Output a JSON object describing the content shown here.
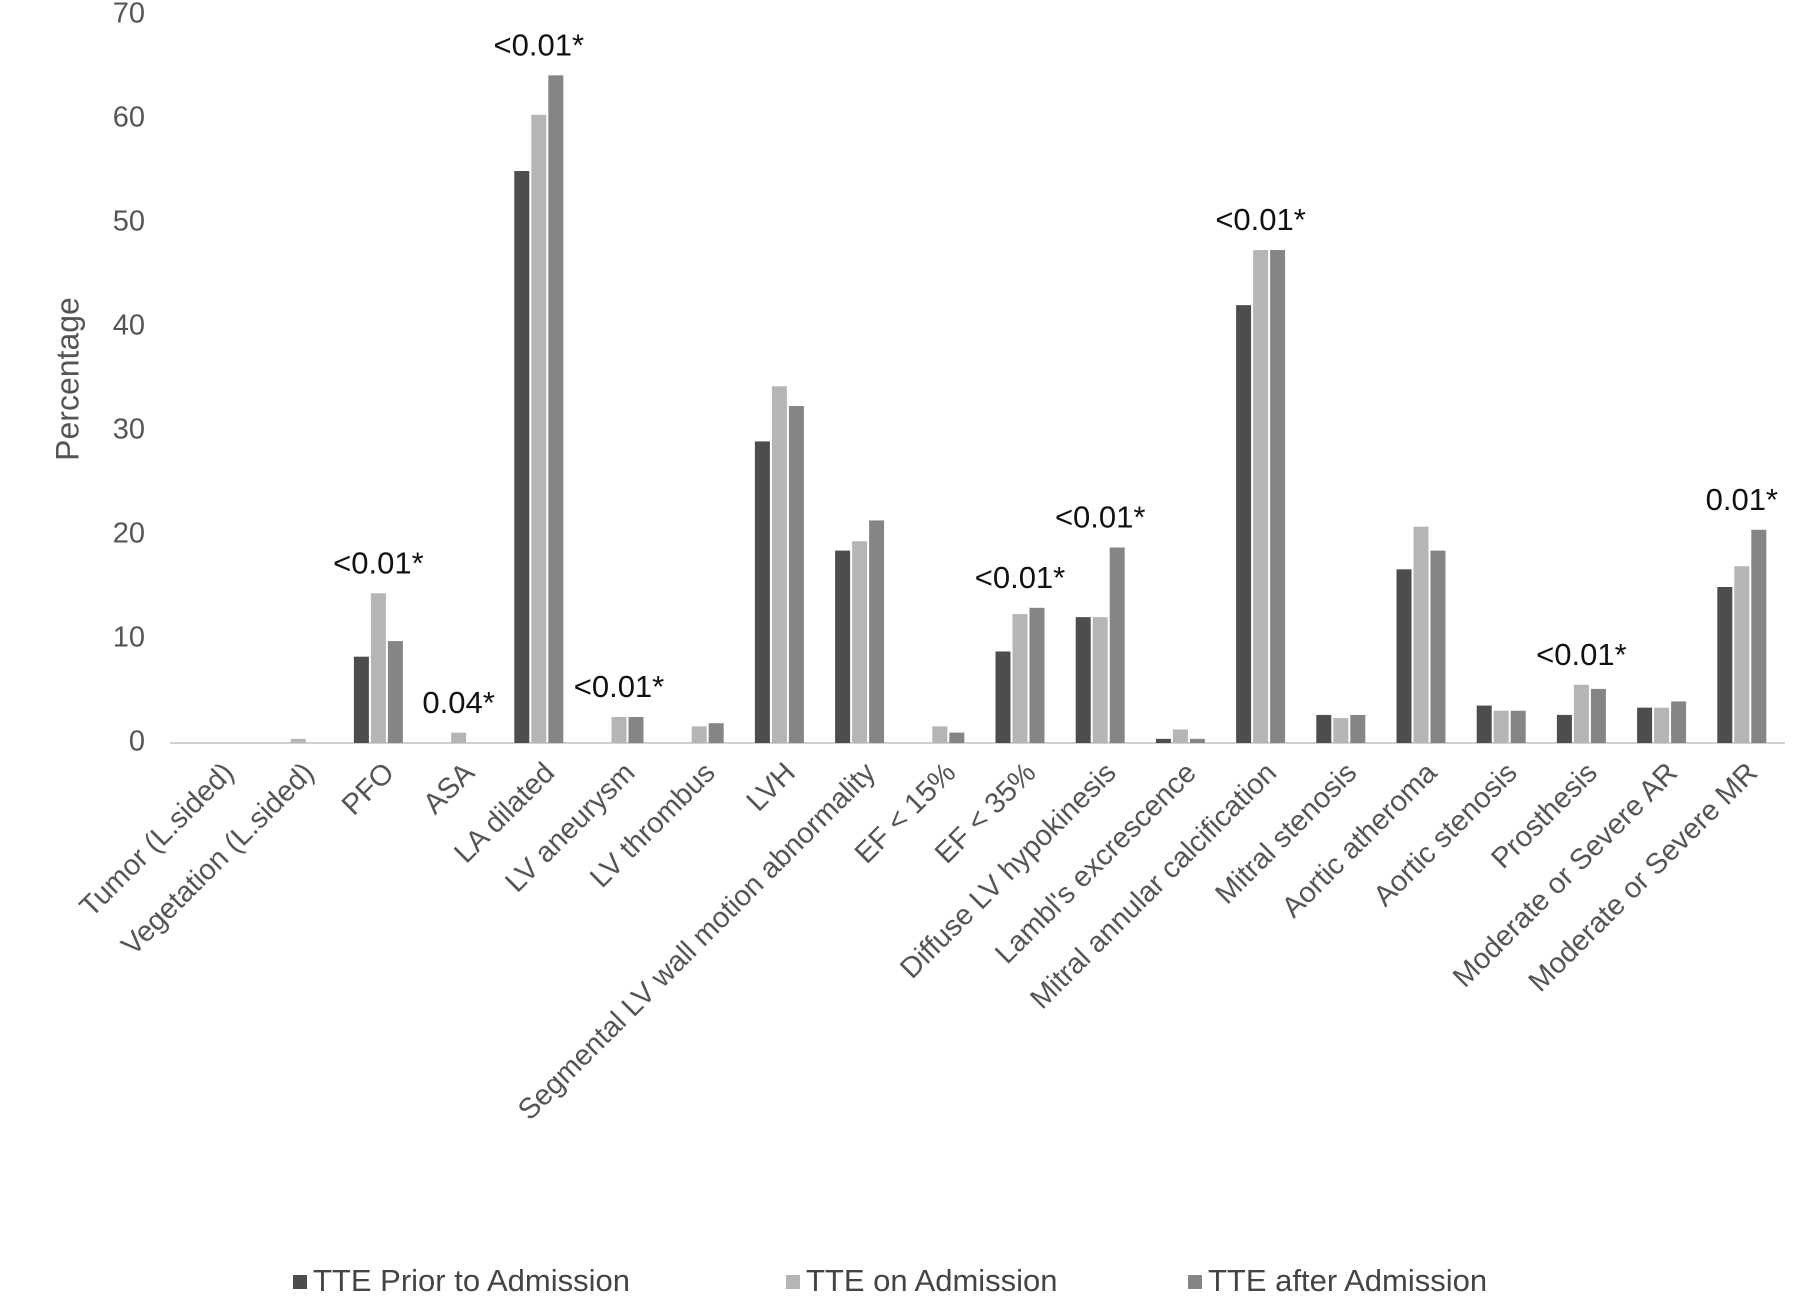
{
  "chart_data": {
    "type": "bar",
    "y_label": "Percentage",
    "categories": [
      "Tumor (L.sided)",
      "Vegetation (L.sided)",
      "PFO",
      "ASA",
      "LA dilated",
      "LV aneurysm",
      "LV thrombus",
      "LVH",
      "Segmental LV wall motion abnormality",
      "EF < 15%",
      "EF < 35%",
      "Diffuse LV hypokinesis",
      "Lambl's excrescence",
      "Mitral annular calcification",
      "Mitral stenosis",
      "Aortic atheroma",
      "Aortic stenosis",
      "Prosthesis",
      "Moderate or Severe AR",
      "Moderate or Severe MR"
    ],
    "series": [
      {
        "name": "TTE Prior to Admission",
        "color": "#4d4d4d",
        "values": [
          0,
          0,
          8.3,
          0,
          55,
          0,
          0,
          29,
          18.5,
          0,
          8.8,
          12.1,
          0.4,
          42.1,
          2.7,
          16.7,
          3.6,
          2.7,
          3.4,
          15.0
        ]
      },
      {
        "name": "TTE on Admission",
        "color": "#b5b5b5",
        "values": [
          0,
          0.4,
          14.4,
          1.0,
          60.4,
          2.5,
          1.6,
          34.3,
          19.4,
          1.6,
          12.4,
          12.1,
          1.3,
          47.4,
          2.4,
          20.8,
          3.1,
          5.6,
          3.4,
          17.0
        ]
      },
      {
        "name": "TTE after Admission",
        "color": "#858585",
        "values": [
          0,
          0,
          9.8,
          0,
          64.2,
          2.5,
          1.9,
          32.4,
          21.4,
          1.0,
          13.0,
          18.8,
          0.4,
          47.4,
          2.7,
          18.5,
          3.1,
          5.2,
          4.0,
          20.5
        ]
      }
    ],
    "annotations": [
      null,
      null,
      "<0.01*",
      "0.04*",
      "<0.01*",
      "<0.01*",
      null,
      null,
      null,
      null,
      "<0.01*",
      "<0.01*",
      null,
      "<0.01*",
      null,
      null,
      null,
      "<0.01*",
      null,
      "0.01*"
    ],
    "ylim": [
      0,
      70
    ],
    "yticks": [
      0,
      10,
      20,
      30,
      40,
      50,
      60,
      70
    ],
    "grid": false,
    "legend": "bottom"
  }
}
